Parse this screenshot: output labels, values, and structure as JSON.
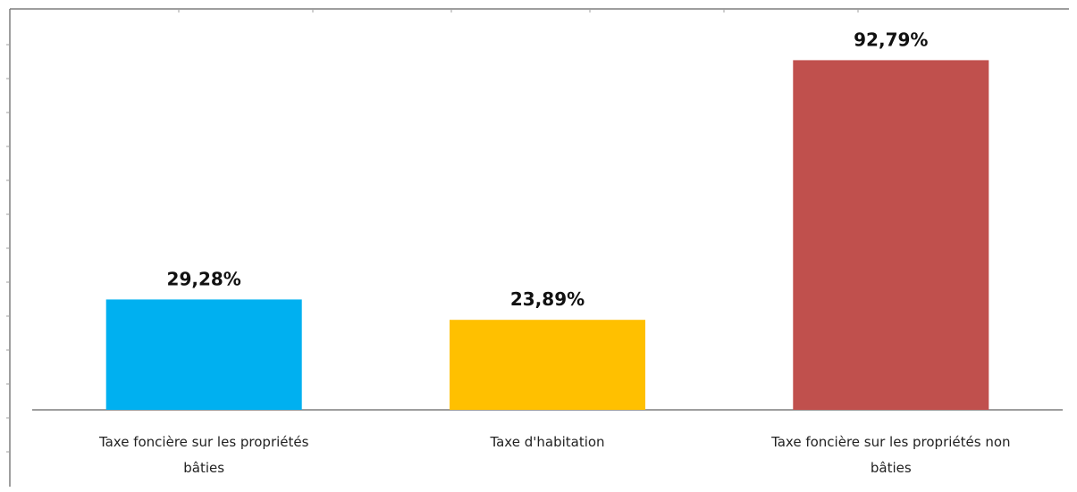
{
  "chart_data": {
    "type": "bar",
    "categories": [
      "Taxe foncière sur les propriétés bâties",
      "Taxe d'habitation",
      "Taxe foncière sur les propriétés non bâties"
    ],
    "category_lines": [
      [
        "Taxe foncière sur les propriétés",
        "bâties"
      ],
      [
        "Taxe d'habitation"
      ],
      [
        "Taxe foncière sur les propriétés non",
        "bâties"
      ]
    ],
    "values": [
      29.28,
      23.89,
      92.79
    ],
    "value_labels": [
      "29,28%",
      "23,89%",
      "92,79%"
    ],
    "colors": [
      "#00b0f0",
      "#ffc000",
      "#c0504d"
    ],
    "title": "",
    "xlabel": "",
    "ylabel": "",
    "ylim": [
      0,
      100
    ],
    "grid": false,
    "legend": "none"
  }
}
